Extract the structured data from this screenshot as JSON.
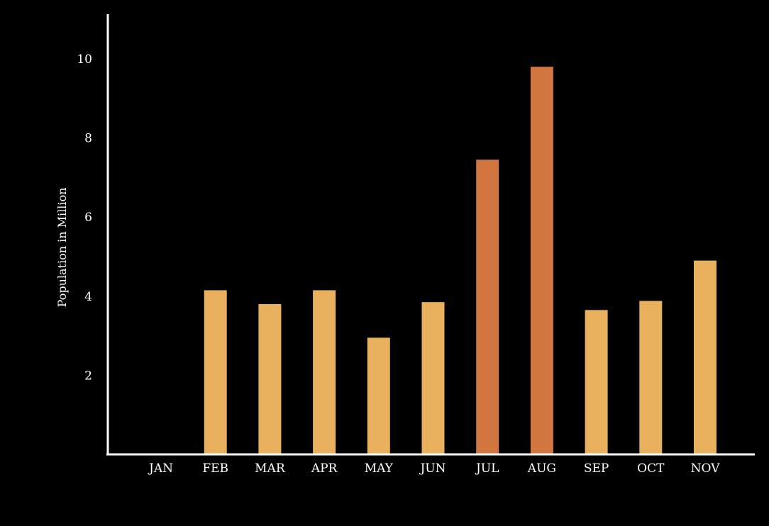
{
  "chart_data": {
    "type": "bar",
    "title": "",
    "xlabel": "",
    "ylabel": "Population in Million",
    "categories": [
      "JAN",
      "FEB",
      "MAR",
      "APR",
      "MAY",
      "JUN",
      "JUL",
      "AUG",
      "SEP",
      "OCT",
      "NOV"
    ],
    "values": [
      0,
      4.15,
      3.8,
      4.15,
      2.95,
      3.85,
      7.45,
      9.8,
      3.65,
      3.88,
      4.9
    ],
    "highlighted": [
      "JUL",
      "AUG"
    ],
    "ylim": [
      0,
      11
    ],
    "yticks": [
      2,
      4,
      6,
      8,
      10
    ],
    "grid": false,
    "legend": "none"
  },
  "colors": {
    "background": "#000000",
    "bar": "#E9B15D",
    "bar_highlight": "#D27640",
    "axis": "#ffffff",
    "text": "#ffffff"
  }
}
